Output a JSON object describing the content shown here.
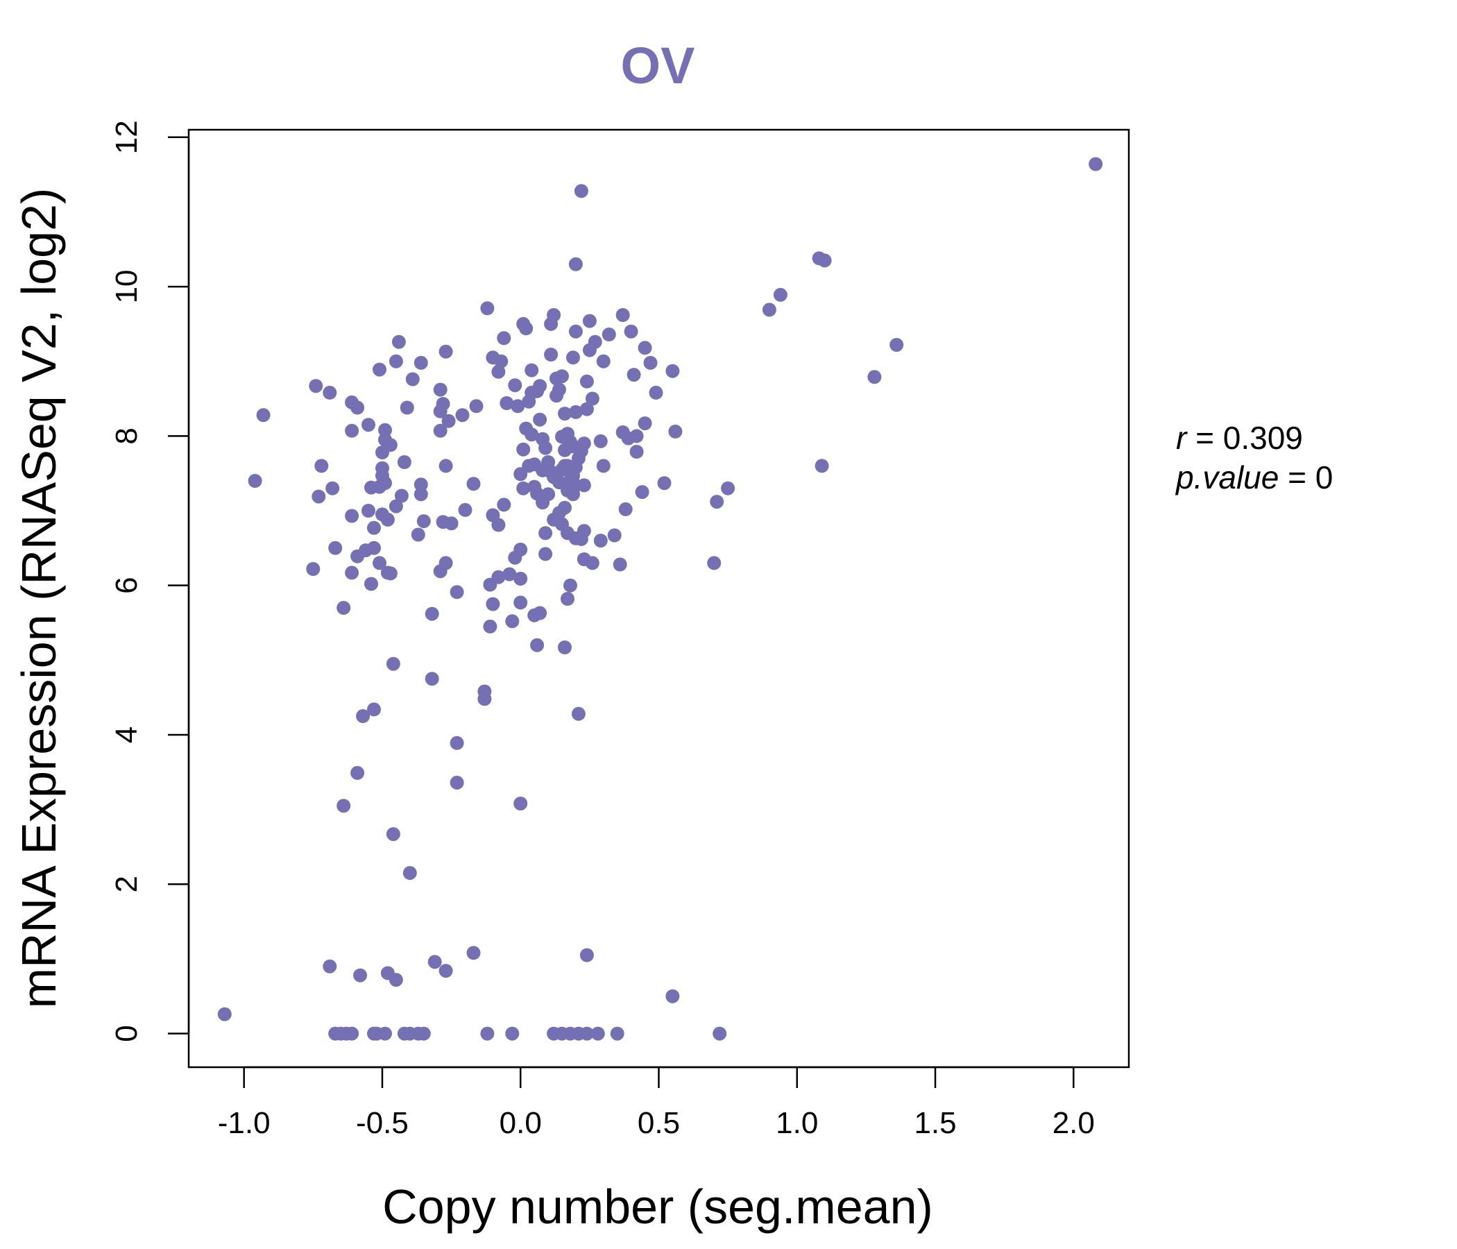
{
  "chart_data": {
    "type": "scatter",
    "title": "OV",
    "xlabel": "Copy number (seg.mean)",
    "ylabel": "mRNA Expression (RNASeq V2, log2)",
    "xlim": [
      -1.2,
      2.2
    ],
    "ylim": [
      -0.45,
      12.1
    ],
    "x_ticks": [
      -1.0,
      -0.5,
      0.0,
      0.5,
      1.0,
      1.5,
      2.0
    ],
    "x_tick_labels": [
      "-1.0",
      "-0.5",
      "0.0",
      "0.5",
      "1.0",
      "1.5",
      "2.0"
    ],
    "y_ticks": [
      0,
      2,
      4,
      6,
      8,
      10,
      12
    ],
    "y_tick_labels": [
      "0",
      "2",
      "4",
      "6",
      "8",
      "10",
      "12"
    ],
    "grid": false,
    "point_color": "#7570b3",
    "title_color": "#7570b3",
    "stats": {
      "r_label": "r",
      "r_value": "0.309",
      "p_label": "p.value",
      "p_value": "0"
    },
    "points": [
      [
        -1.07,
        0.26
      ],
      [
        -0.96,
        7.4
      ],
      [
        -0.93,
        8.28
      ],
      [
        -0.75,
        6.22
      ],
      [
        -0.74,
        8.67
      ],
      [
        -0.73,
        7.19
      ],
      [
        -0.72,
        7.6
      ],
      [
        -0.69,
        8.58
      ],
      [
        -0.68,
        7.3
      ],
      [
        -0.67,
        6.5
      ],
      [
        -0.69,
        0.9
      ],
      [
        -0.67,
        0.0
      ],
      [
        -0.65,
        0.0
      ],
      [
        -0.64,
        5.7
      ],
      [
        -0.64,
        3.05
      ],
      [
        -0.63,
        0.0
      ],
      [
        -0.61,
        0.0
      ],
      [
        -0.61,
        8.45
      ],
      [
        -0.61,
        8.07
      ],
      [
        -0.61,
        6.93
      ],
      [
        -0.61,
        6.17
      ],
      [
        -0.59,
        8.38
      ],
      [
        -0.59,
        6.39
      ],
      [
        -0.59,
        3.49
      ],
      [
        -0.58,
        0.78
      ],
      [
        -0.57,
        4.25
      ],
      [
        -0.56,
        6.47
      ],
      [
        -0.55,
        8.15
      ],
      [
        -0.55,
        7.0
      ],
      [
        -0.54,
        7.31
      ],
      [
        -0.54,
        6.02
      ],
      [
        -0.53,
        6.77
      ],
      [
        -0.53,
        6.5
      ],
      [
        -0.53,
        4.34
      ],
      [
        -0.53,
        0.0
      ],
      [
        -0.52,
        0.0
      ],
      [
        -0.51,
        7.32
      ],
      [
        -0.51,
        6.3
      ],
      [
        -0.5,
        6.95
      ],
      [
        -0.51,
        8.89
      ],
      [
        -0.5,
        7.47
      ],
      [
        -0.5,
        7.57
      ],
      [
        -0.5,
        7.78
      ],
      [
        -0.49,
        8.08
      ],
      [
        -0.49,
        7.95
      ],
      [
        -0.49,
        7.37
      ],
      [
        -0.48,
        6.88
      ],
      [
        -0.49,
        0.0
      ],
      [
        -0.48,
        6.17
      ],
      [
        -0.47,
        7.88
      ],
      [
        -0.47,
        6.16
      ],
      [
        -0.48,
        0.81
      ],
      [
        -0.46,
        4.95
      ],
      [
        -0.46,
        2.67
      ],
      [
        -0.45,
        7.06
      ],
      [
        -0.45,
        9.0
      ],
      [
        -0.45,
        0.72
      ],
      [
        -0.44,
        9.26
      ],
      [
        -0.43,
        7.2
      ],
      [
        -0.42,
        7.65
      ],
      [
        -0.42,
        0.0
      ],
      [
        -0.41,
        8.38
      ],
      [
        -0.4,
        2.15
      ],
      [
        -0.4,
        0.0
      ],
      [
        -0.39,
        8.76
      ],
      [
        -0.37,
        6.68
      ],
      [
        -0.37,
        0.0
      ],
      [
        -0.36,
        8.98
      ],
      [
        -0.36,
        7.35
      ],
      [
        -0.36,
        7.22
      ],
      [
        -0.35,
        6.86
      ],
      [
        -0.35,
        0.0
      ],
      [
        -0.32,
        5.62
      ],
      [
        -0.32,
        4.75
      ],
      [
        -0.31,
        0.96
      ],
      [
        -0.29,
        8.33
      ],
      [
        -0.29,
        8.07
      ],
      [
        -0.29,
        6.19
      ],
      [
        -0.29,
        8.62
      ],
      [
        -0.28,
        6.85
      ],
      [
        -0.28,
        8.43
      ],
      [
        -0.27,
        9.13
      ],
      [
        -0.27,
        7.6
      ],
      [
        -0.27,
        6.3
      ],
      [
        -0.27,
        0.84
      ],
      [
        -0.26,
        8.2
      ],
      [
        -0.25,
        6.83
      ],
      [
        -0.23,
        5.91
      ],
      [
        -0.23,
        3.89
      ],
      [
        -0.23,
        3.36
      ],
      [
        -0.21,
        8.28
      ],
      [
        -0.2,
        7.01
      ],
      [
        -0.17,
        7.36
      ],
      [
        -0.17,
        1.08
      ],
      [
        -0.16,
        8.4
      ],
      [
        -0.13,
        4.58
      ],
      [
        -0.13,
        4.48
      ],
      [
        -0.12,
        0.0
      ],
      [
        -0.12,
        9.71
      ],
      [
        -0.11,
        6.01
      ],
      [
        -0.11,
        5.45
      ],
      [
        -0.1,
        9.05
      ],
      [
        -0.1,
        6.94
      ],
      [
        -0.1,
        5.75
      ],
      [
        -0.08,
        8.86
      ],
      [
        -0.08,
        6.11
      ],
      [
        -0.08,
        6.81
      ],
      [
        -0.07,
        9.0
      ],
      [
        -0.06,
        9.31
      ],
      [
        -0.06,
        7.08
      ],
      [
        -0.05,
        8.44
      ],
      [
        -0.04,
        6.15
      ],
      [
        -0.03,
        5.52
      ],
      [
        -0.03,
        0.0
      ],
      [
        -0.02,
        8.68
      ],
      [
        -0.02,
        6.37
      ],
      [
        -0.01,
        8.4
      ],
      [
        0.0,
        7.49
      ],
      [
        0.0,
        6.48
      ],
      [
        0.0,
        6.09
      ],
      [
        0.0,
        5.77
      ],
      [
        0.0,
        3.08
      ],
      [
        0.01,
        9.5
      ],
      [
        0.01,
        7.3
      ],
      [
        0.01,
        7.82
      ],
      [
        0.02,
        9.44
      ],
      [
        0.02,
        8.1
      ],
      [
        0.03,
        8.46
      ],
      [
        0.03,
        7.6
      ],
      [
        0.04,
        8.88
      ],
      [
        0.04,
        8.58
      ],
      [
        0.04,
        8.02
      ],
      [
        0.05,
        7.32
      ],
      [
        0.05,
        7.62
      ],
      [
        0.05,
        5.6
      ],
      [
        0.06,
        8.6
      ],
      [
        0.06,
        5.2
      ],
      [
        0.06,
        7.23
      ],
      [
        0.07,
        8.22
      ],
      [
        0.07,
        8.67
      ],
      [
        0.07,
        5.63
      ],
      [
        0.08,
        7.54
      ],
      [
        0.08,
        7.11
      ],
      [
        0.08,
        7.96
      ],
      [
        0.09,
        6.7
      ],
      [
        0.09,
        6.42
      ],
      [
        0.09,
        7.84
      ],
      [
        0.1,
        7.65
      ],
      [
        0.1,
        7.22
      ],
      [
        0.11,
        9.09
      ],
      [
        0.11,
        9.5
      ],
      [
        0.11,
        7.52
      ],
      [
        0.12,
        9.62
      ],
      [
        0.12,
        7.45
      ],
      [
        0.12,
        6.88
      ],
      [
        0.12,
        0.0
      ],
      [
        0.13,
        8.54
      ],
      [
        0.13,
        8.77
      ],
      [
        0.14,
        8.62
      ],
      [
        0.14,
        7.38
      ],
      [
        0.14,
        6.97
      ],
      [
        0.15,
        8.8
      ],
      [
        0.15,
        7.99
      ],
      [
        0.15,
        7.55
      ],
      [
        0.15,
        6.82
      ],
      [
        0.15,
        0.0
      ],
      [
        0.16,
        8.3
      ],
      [
        0.16,
        7.81
      ],
      [
        0.16,
        7.6
      ],
      [
        0.16,
        7.04
      ],
      [
        0.16,
        5.17
      ],
      [
        0.17,
        8.03
      ],
      [
        0.17,
        7.6
      ],
      [
        0.17,
        7.27
      ],
      [
        0.17,
        6.7
      ],
      [
        0.17,
        5.82
      ],
      [
        0.18,
        7.92
      ],
      [
        0.18,
        7.55
      ],
      [
        0.18,
        7.41
      ],
      [
        0.18,
        6.0
      ],
      [
        0.18,
        0.0
      ],
      [
        0.19,
        9.05
      ],
      [
        0.19,
        7.86
      ],
      [
        0.19,
        7.47
      ],
      [
        0.19,
        7.22
      ],
      [
        0.2,
        10.3
      ],
      [
        0.2,
        9.4
      ],
      [
        0.2,
        8.32
      ],
      [
        0.2,
        7.58
      ],
      [
        0.2,
        7.34
      ],
      [
        0.2,
        6.63
      ],
      [
        0.21,
        4.28
      ],
      [
        0.21,
        7.7
      ],
      [
        0.21,
        0.0
      ],
      [
        0.22,
        11.28
      ],
      [
        0.22,
        7.8
      ],
      [
        0.22,
        6.62
      ],
      [
        0.23,
        7.9
      ],
      [
        0.23,
        7.34
      ],
      [
        0.23,
        6.73
      ],
      [
        0.23,
        6.35
      ],
      [
        0.24,
        8.73
      ],
      [
        0.24,
        8.36
      ],
      [
        0.24,
        1.05
      ],
      [
        0.24,
        0.0
      ],
      [
        0.25,
        9.54
      ],
      [
        0.25,
        9.15
      ],
      [
        0.26,
        8.5
      ],
      [
        0.26,
        6.3
      ],
      [
        0.27,
        9.26
      ],
      [
        0.28,
        0.0
      ],
      [
        0.29,
        7.93
      ],
      [
        0.29,
        6.6
      ],
      [
        0.3,
        9.0
      ],
      [
        0.3,
        7.6
      ],
      [
        0.32,
        9.36
      ],
      [
        0.34,
        6.67
      ],
      [
        0.35,
        0.0
      ],
      [
        0.36,
        6.28
      ],
      [
        0.37,
        9.62
      ],
      [
        0.37,
        8.05
      ],
      [
        0.38,
        7.02
      ],
      [
        0.39,
        7.97
      ],
      [
        0.4,
        9.4
      ],
      [
        0.41,
        8.82
      ],
      [
        0.42,
        8.0
      ],
      [
        0.42,
        7.79
      ],
      [
        0.44,
        7.25
      ],
      [
        0.45,
        9.18
      ],
      [
        0.45,
        8.17
      ],
      [
        0.47,
        8.98
      ],
      [
        0.49,
        8.58
      ],
      [
        0.52,
        7.37
      ],
      [
        0.55,
        8.87
      ],
      [
        0.55,
        0.5
      ],
      [
        0.56,
        8.06
      ],
      [
        0.7,
        6.3
      ],
      [
        0.71,
        7.12
      ],
      [
        0.72,
        0.0
      ],
      [
        0.75,
        7.3
      ],
      [
        0.9,
        9.69
      ],
      [
        0.94,
        9.89
      ],
      [
        1.08,
        10.38
      ],
      [
        1.09,
        7.6
      ],
      [
        1.1,
        10.35
      ],
      [
        1.28,
        8.79
      ],
      [
        1.36,
        9.22
      ],
      [
        2.08,
        11.64
      ]
    ]
  }
}
